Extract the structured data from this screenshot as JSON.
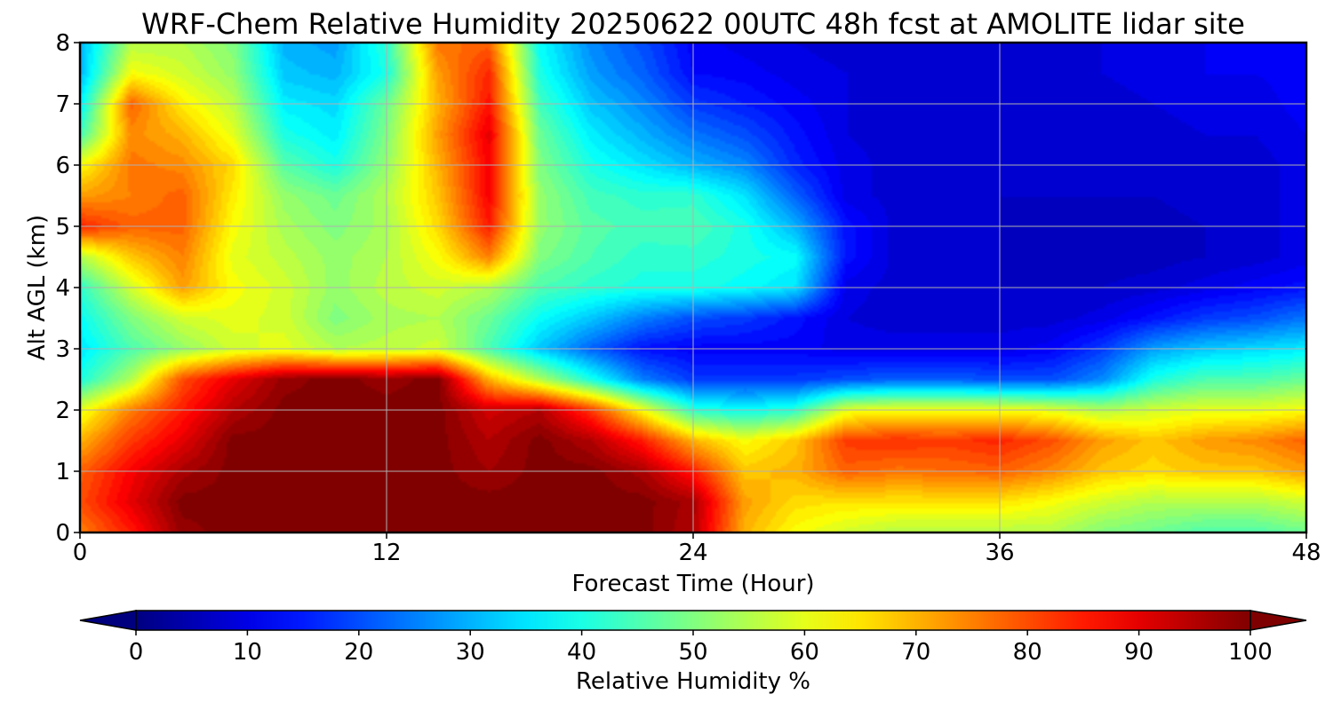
{
  "chart_data": {
    "type": "heatmap",
    "title": "WRF-Chem Relative Humidity 20250622 00UTC 48h fcst at AMOLITE lidar site",
    "xlabel": "Forecast Time (Hour)",
    "ylabel": "Alt AGL (km)",
    "xlim": [
      0,
      48
    ],
    "ylim": [
      0,
      8
    ],
    "x_ticks": [
      0,
      12,
      24,
      36,
      48
    ],
    "y_ticks": [
      0,
      1,
      2,
      3,
      4,
      5,
      6,
      7,
      8
    ],
    "grid": true,
    "colormap": "jet",
    "colorbar": {
      "label": "Relative Humidity %",
      "range": [
        0,
        100
      ],
      "ticks": [
        0,
        10,
        20,
        30,
        40,
        50,
        60,
        70,
        80,
        90,
        100
      ],
      "extend": "both",
      "orientation": "horizontal"
    },
    "x": [
      0,
      2,
      4,
      6,
      8,
      10,
      12,
      14,
      16,
      18,
      20,
      22,
      24,
      26,
      28,
      30,
      32,
      34,
      36,
      38,
      40,
      42,
      44,
      46,
      48
    ],
    "y": [
      0,
      0.5,
      1,
      1.5,
      2,
      2.5,
      3,
      3.5,
      4,
      4.5,
      5,
      5.5,
      6,
      6.5,
      7,
      7.5,
      8
    ],
    "z": [
      [
        75,
        85,
        98,
        100,
        100,
        100,
        100,
        100,
        100,
        100,
        100,
        100,
        95,
        70,
        62,
        58,
        55,
        55,
        55,
        55,
        50,
        48,
        45,
        45,
        48
      ],
      [
        80,
        90,
        100,
        100,
        100,
        100,
        100,
        100,
        100,
        100,
        100,
        100,
        96,
        72,
        66,
        65,
        65,
        65,
        65,
        62,
        58,
        55,
        55,
        55,
        58
      ],
      [
        78,
        88,
        96,
        100,
        100,
        100,
        100,
        100,
        97,
        100,
        100,
        96,
        85,
        68,
        70,
        78,
        76,
        77,
        78,
        74,
        68,
        66,
        68,
        68,
        72
      ],
      [
        70,
        82,
        90,
        100,
        100,
        100,
        100,
        100,
        95,
        100,
        95,
        85,
        70,
        62,
        68,
        82,
        83,
        82,
        84,
        80,
        72,
        68,
        72,
        74,
        78
      ],
      [
        60,
        75,
        85,
        95,
        100,
        100,
        100,
        100,
        92,
        95,
        82,
        62,
        42,
        38,
        42,
        60,
        62,
        62,
        62,
        60,
        55,
        58,
        60,
        60,
        62
      ],
      [
        40,
        55,
        80,
        90,
        98,
        100,
        98,
        100,
        70,
        55,
        40,
        25,
        18,
        18,
        18,
        20,
        22,
        22,
        20,
        20,
        26,
        40,
        45,
        45,
        48
      ],
      [
        35,
        45,
        52,
        58,
        60,
        55,
        56,
        58,
        45,
        32,
        22,
        14,
        12,
        12,
        12,
        10,
        10,
        10,
        10,
        12,
        18,
        28,
        32,
        34,
        36
      ],
      [
        38,
        50,
        58,
        60,
        58,
        50,
        54,
        55,
        48,
        38,
        32,
        25,
        20,
        18,
        14,
        9,
        8,
        8,
        8,
        8,
        10,
        14,
        18,
        20,
        24
      ],
      [
        42,
        58,
        72,
        62,
        58,
        52,
        56,
        58,
        55,
        45,
        42,
        40,
        40,
        38,
        35,
        10,
        8,
        8,
        7,
        7,
        7,
        8,
        10,
        12,
        14
      ],
      [
        55,
        68,
        75,
        60,
        56,
        52,
        55,
        62,
        75,
        50,
        45,
        42,
        42,
        40,
        38,
        14,
        8,
        8,
        7,
        6,
        6,
        6,
        7,
        8,
        10
      ],
      [
        84,
        78,
        78,
        62,
        54,
        50,
        54,
        66,
        85,
        52,
        46,
        44,
        45,
        40,
        30,
        14,
        8,
        8,
        7,
        6,
        6,
        6,
        7,
        8,
        10
      ],
      [
        72,
        75,
        78,
        64,
        52,
        48,
        55,
        68,
        88,
        52,
        44,
        42,
        42,
        35,
        22,
        10,
        8,
        8,
        7,
        7,
        7,
        7,
        8,
        8,
        10
      ],
      [
        62,
        76,
        74,
        66,
        46,
        40,
        52,
        70,
        88,
        50,
        40,
        35,
        30,
        26,
        16,
        10,
        8,
        8,
        8,
        8,
        8,
        8,
        8,
        8,
        10
      ],
      [
        44,
        74,
        70,
        60,
        40,
        36,
        50,
        72,
        90,
        48,
        36,
        30,
        24,
        20,
        14,
        9,
        8,
        8,
        8,
        8,
        8,
        8,
        9,
        9,
        11
      ],
      [
        36,
        78,
        64,
        56,
        36,
        34,
        48,
        70,
        86,
        44,
        32,
        26,
        18,
        15,
        12,
        9,
        8,
        8,
        8,
        8,
        8,
        9,
        10,
        10,
        12
      ],
      [
        30,
        62,
        58,
        52,
        32,
        30,
        40,
        72,
        84,
        40,
        28,
        22,
        13,
        12,
        10,
        9,
        8,
        8,
        8,
        8,
        9,
        10,
        11,
        11,
        12
      ],
      [
        30,
        55,
        55,
        50,
        30,
        28,
        42,
        76,
        78,
        38,
        26,
        20,
        12,
        10,
        9,
        8,
        8,
        8,
        8,
        8,
        9,
        10,
        11,
        11,
        12
      ]
    ]
  }
}
